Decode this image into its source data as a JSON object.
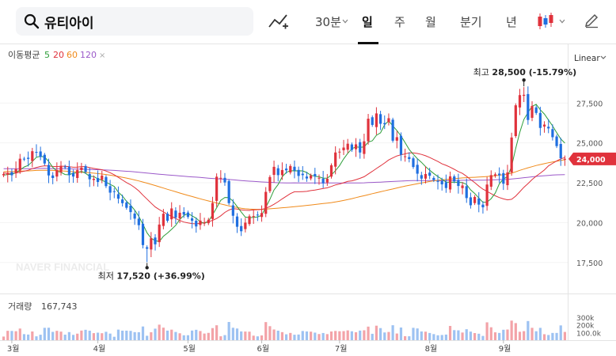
{
  "toolbar": {
    "search_value": "유티아이",
    "indicator_icon": "chart-line-plus-icon",
    "period_30min": "30분",
    "tab_day": "일",
    "tab_week": "주",
    "tab_month": "월",
    "tab_quarter": "분기",
    "tab_year": "년",
    "candle_icon": "candlestick-icon",
    "pencil_icon": "pencil-icon",
    "active_tab": "일"
  },
  "chart_data": {
    "type": "candlestick",
    "scale": "Linear",
    "ma_label": "이동평균",
    "ma_periods": [
      {
        "label": "5",
        "color": "#2e9e3a"
      },
      {
        "label": "20",
        "color": "#e0323c"
      },
      {
        "label": "60",
        "color": "#f08a1a"
      },
      {
        "label": "120",
        "color": "#9b59c9"
      }
    ],
    "price_ticks": [
      {
        "value": 27500,
        "label": "27,500"
      },
      {
        "value": 25000,
        "label": "25,000"
      },
      {
        "value": 22500,
        "label": "22,500"
      },
      {
        "value": 20000,
        "label": "20,000"
      },
      {
        "value": 17500,
        "label": "17,500"
      }
    ],
    "current_price": {
      "value": 24000,
      "label": "24,000"
    },
    "high_note": {
      "label": "최고",
      "value": "28,500",
      "change": "(-15.79%)",
      "price": 28500
    },
    "low_note": {
      "label": "최저",
      "value": "17,520",
      "change": "(+36.99%)",
      "price": 17520
    },
    "watermark": "NAVER FINANCIAL",
    "volume_label": "거래량",
    "volume_value": "167,743",
    "volume_ticks": [
      {
        "value": 300000,
        "label": "300k"
      },
      {
        "value": 200000,
        "label": "200k"
      },
      {
        "value": 100000,
        "label": "100.0k"
      }
    ],
    "months": [
      "3월",
      "4월",
      "5월",
      "6월",
      "7월",
      "8월",
      "9월"
    ],
    "colors": {
      "up": "#e0323c",
      "down": "#1f6fe0",
      "vol_up": "#f3a3a8",
      "vol_down": "#9dc2f2"
    },
    "price_range": [
      16000,
      29500
    ],
    "volume_range": [
      0,
      330000
    ],
    "close": [
      23050,
      23120,
      22970,
      23360,
      24010,
      23980,
      24000,
      24480,
      24420,
      24120,
      23710,
      22960,
      22800,
      23300,
      23560,
      23460,
      22980,
      22890,
      23300,
      23450,
      23180,
      22720,
      22750,
      22550,
      22950,
      22290,
      21880,
      21920,
      21500,
      21220,
      20930,
      20660,
      20250,
      19840,
      18590,
      18360,
      19020,
      18640,
      19880,
      20560,
      20120,
      20890,
      20310,
      20620,
      20500,
      20360,
      20120,
      19760,
      20130,
      20010,
      20180,
      21230,
      22880,
      22810,
      22520,
      21220,
      20430,
      19740,
      19460,
      20000,
      20400,
      20410,
      20490,
      20600,
      21930,
      22860,
      23500,
      22980,
      23300,
      23280,
      23550,
      23260,
      22930,
      22980,
      22770,
      22960,
      22900,
      22810,
      22470,
      22750,
      23600,
      24400,
      24450,
      24710,
      24950,
      24560,
      24910,
      24400,
      25100,
      26520,
      26130,
      26850,
      26200,
      26170,
      26550,
      25140,
      25360,
      24260,
      24160,
      23990,
      23490,
      23070,
      22760,
      23050,
      22940,
      22670,
      22560,
      22400,
      22170,
      22900,
      22590,
      22300,
      22330,
      21540,
      21090,
      21610,
      21130,
      20960,
      22390,
      22980,
      23030,
      22970,
      22440,
      23150,
      25340,
      27360,
      28000,
      28020,
      26440,
      27320,
      26880,
      25940,
      26150,
      25910,
      25360,
      24800,
      24040,
      24000
    ],
    "ma5": [
      22976,
      23016,
      23041,
      23134,
      23302,
      23488,
      23588,
      23834,
      24098,
      24164,
      24113,
      23836,
      23470,
      23230,
      23158,
      23016,
      22996,
      23106,
      23122,
      23222,
      23094,
      22906,
      22892,
      22748,
      22656,
      22540,
      22396,
      22268,
      21906,
      21672,
      21342,
      21098,
      20782,
      20390,
      19894,
      19360,
      19030,
      18862,
      18816,
      19148,
      19346,
      19578,
      19830,
      20200,
      20448,
      20572,
      20428,
      20272,
      20062,
      19946,
      20084,
      20498,
      20922,
      21398,
      21580,
      21570,
      21346,
      21010,
      20658,
      20346,
      20312,
      20332,
      20360,
      20462,
      20958,
      21464,
      22052,
      22386,
      22870,
      23152,
      23260,
      23244,
      23252,
      23248,
      23142,
      22971,
      22909,
      22874,
      22797,
      22792,
      22994,
      23259,
      23576,
      23998,
      24347,
      24631,
      24754,
      24720,
      24746,
      25060,
      25132,
      25478,
      25636,
      26143,
      26377,
      26072,
      25775,
      25436,
      25020,
      24589,
      24283,
      24011,
      23783,
      23514,
      23287,
      23084,
      22887,
      22726,
      22541,
      22534,
      22539,
      22520,
      22514,
      22398,
      22057,
      21826,
      21544,
      21278,
      21287,
      21504,
      21851,
      22431,
      22736,
      22890,
      23543,
      24652,
      25666,
      26478,
      26900,
      27294,
      27422,
      27080,
      26813,
      26438,
      26070,
      25645,
      25253,
      24990
    ],
    "ma20": [
      23112,
      23092,
      23079,
      23102,
      23178,
      23226,
      23287,
      23386,
      23460,
      23522,
      23566,
      23550,
      23524,
      23516,
      23540,
      23538,
      23507,
      23475,
      23481,
      23514,
      23513,
      23450,
      23402,
      23361,
      23319,
      23235,
      23133,
      23004,
      22839,
      22678,
      22512,
      22376,
      22200,
      21993,
      21721,
      21476,
      21228,
      20983,
      20818,
      20673,
      20520,
      20392,
      20257,
      20136,
      20033,
      19981,
      19943,
      19921,
      19958,
      20000,
      20056,
      20143,
      20257,
      20425,
      20643,
      20788,
      20878,
      20853,
      20804,
      20779,
      20766,
      20803,
      20811,
      20830,
      20901,
      21010,
      21150,
      21310,
      21489,
      21652,
      21820,
      21935,
      21938,
      21947,
      21960,
      22008,
      22041,
      22090,
      22141,
      22186,
      22270,
      22366,
      22417,
      22503,
      22587,
      22622,
      22693,
      22778,
      22880,
      23054,
      23216,
      23396,
      23562,
      23743,
      23932,
      24059,
      24182,
      24252,
      24315,
      24377,
      24372,
      24337,
      24277,
      24194,
      24083,
      23962,
      23836,
      23689,
      23592,
      23481,
      23345,
      23204,
      23087,
      22909,
      22699,
      22506,
      22290,
      22101,
      21966,
      21816,
      21684,
      21576,
      21489,
      21432,
      21466,
      21663,
      21938,
      22219,
      22445,
      22700,
      22920,
      23101,
      23301,
      23559,
      23718,
      23869,
      24002,
      24080
    ],
    "ma60": [
      23198,
      23201,
      23203,
      23211,
      23228,
      23241,
      23248,
      23261,
      23275,
      23283,
      23285,
      23282,
      23274,
      23260,
      23246,
      23231,
      23214,
      23196,
      23182,
      23169,
      23150,
      23127,
      23103,
      23076,
      23047,
      23016,
      22980,
      22940,
      22895,
      22846,
      22795,
      22739,
      22678,
      22614,
      22548,
      22478,
      22405,
      22328,
      22249,
      22169,
      22091,
      22013,
      21936,
      21857,
      21783,
      21709,
      21638,
      21565,
      21494,
      21427,
      21361,
      21295,
      21232,
      21170,
      21110,
      21050,
      20995,
      20947,
      20902,
      20868,
      20851,
      20838,
      20834,
      20836,
      20847,
      20868,
      20889,
      20910,
      20932,
      20952,
      20974,
      20998,
      21025,
      21053,
      21081,
      21109,
      21138,
      21167,
      21197,
      21226,
      21258,
      21296,
      21342,
      21391,
      21446,
      21506,
      21571,
      21631,
      21689,
      21751,
      21815,
      21878,
      21938,
      21995,
      22053,
      22112,
      22172,
      22234,
      22290,
      22341,
      22392,
      22440,
      22488,
      22534,
      22582,
      22624,
      22657,
      22683,
      22705,
      22730,
      22756,
      22780,
      22805,
      22821,
      22833,
      22846,
      22859,
      22874,
      22895,
      22920,
      22946,
      22972,
      23006,
      23046,
      23103,
      23188,
      23280,
      23361,
      23438,
      23511,
      23585,
      23645,
      23699,
      23758,
      23807,
      23853,
      23895,
      23944
    ],
    "ma120": [
      23378,
      23381,
      23378,
      23376,
      23379,
      23381,
      23381,
      23387,
      23396,
      23402,
      23403,
      23397,
      23390,
      23387,
      23384,
      23383,
      23374,
      23366,
      23356,
      23354,
      23348,
      23337,
      23328,
      23320,
      23311,
      23303,
      23289,
      23274,
      23259,
      23242,
      23223,
      23205,
      23185,
      23163,
      23138,
      23113,
      23087,
      23064,
      23040,
      23018,
      22995,
      22975,
      22953,
      22930,
      22909,
      22890,
      22870,
      22852,
      22833,
      22811,
      22788,
      22769,
      22753,
      22737,
      22721,
      22704,
      22683,
      22660,
      22640,
      22620,
      22603,
      22585,
      22570,
      22553,
      22538,
      22527,
      22515,
      22504,
      22496,
      22493,
      22494,
      22495,
      22493,
      22490,
      22488,
      22488,
      22488,
      22486,
      22484,
      22485,
      22485,
      22485,
      22484,
      22484,
      22485,
      22489,
      22491,
      22493,
      22499,
      22511,
      22520,
      22533,
      22544,
      22556,
      22569,
      22580,
      22594,
      22607,
      22619,
      22629,
      22636,
      22638,
      22636,
      22635,
      22636,
      22635,
      22634,
      22633,
      22633,
      22637,
      22642,
      22648,
      22654,
      22656,
      22657,
      22662,
      22665,
      22667,
      22672,
      22679,
      22690,
      22699,
      22707,
      22717,
      22734,
      22758,
      22788,
      22818,
      22845,
      22872,
      22897,
      22923,
      22946,
      22963,
      22982,
      22996,
      23005,
      23012
    ]
  }
}
